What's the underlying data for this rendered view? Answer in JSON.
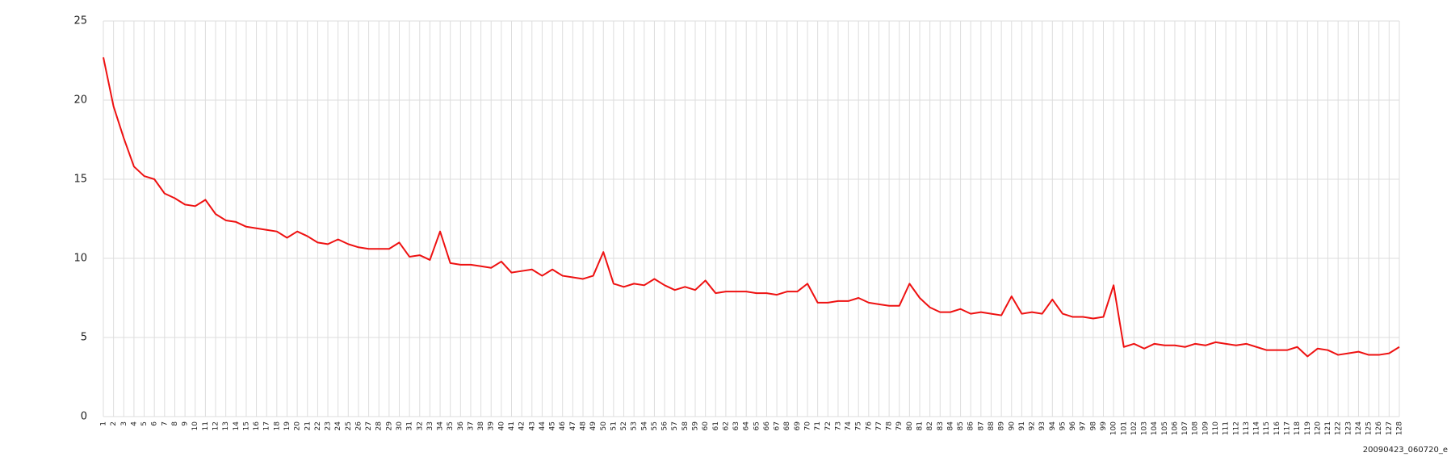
{
  "chart_data": {
    "type": "line",
    "x": [
      1,
      2,
      3,
      4,
      5,
      6,
      7,
      8,
      9,
      10,
      11,
      12,
      13,
      14,
      15,
      16,
      17,
      18,
      19,
      20,
      21,
      22,
      23,
      24,
      25,
      26,
      27,
      28,
      29,
      30,
      31,
      32,
      33,
      34,
      35,
      36,
      37,
      38,
      39,
      40,
      41,
      42,
      43,
      44,
      45,
      46,
      47,
      48,
      49,
      50,
      51,
      52,
      53,
      54,
      55,
      56,
      57,
      58,
      59,
      60,
      61,
      62,
      63,
      64,
      65,
      66,
      67,
      68,
      69,
      70,
      71,
      72,
      73,
      74,
      75,
      76,
      77,
      78,
      79,
      80,
      81,
      82,
      83,
      84,
      85,
      86,
      87,
      88,
      89,
      90,
      91,
      92,
      93,
      94,
      95,
      96,
      97,
      98,
      99,
      100,
      101,
      102,
      103,
      104,
      105,
      106,
      107,
      108,
      109,
      110,
      111,
      112,
      113,
      114,
      115,
      116,
      117,
      118,
      119,
      120,
      121,
      122,
      123,
      124,
      125,
      126,
      127,
      128
    ],
    "series": [
      {
        "color": "#ee1111",
        "values": [
          22.7,
          19.6,
          17.6,
          15.8,
          15.2,
          15.0,
          14.1,
          13.8,
          13.4,
          13.3,
          13.7,
          12.8,
          12.4,
          12.3,
          12.0,
          11.9,
          11.8,
          11.7,
          11.3,
          11.7,
          11.4,
          11.0,
          10.9,
          11.2,
          10.9,
          10.7,
          10.6,
          10.6,
          10.6,
          11.0,
          10.1,
          10.2,
          9.9,
          11.7,
          9.7,
          9.6,
          9.6,
          9.5,
          9.4,
          9.8,
          9.1,
          9.2,
          9.3,
          8.9,
          9.3,
          8.9,
          8.8,
          8.7,
          8.9,
          10.4,
          8.4,
          8.2,
          8.4,
          8.3,
          8.7,
          8.3,
          8.0,
          8.2,
          8.0,
          8.6,
          7.8,
          7.9,
          7.9,
          7.9,
          7.8,
          7.8,
          7.7,
          7.9,
          7.9,
          8.4,
          7.2,
          7.2,
          7.3,
          7.3,
          7.5,
          7.2,
          7.1,
          7.0,
          7.0,
          8.4,
          7.5,
          6.9,
          6.6,
          6.6,
          6.8,
          6.5,
          6.6,
          6.5,
          6.4,
          7.6,
          6.5,
          6.6,
          6.5,
          7.4,
          6.5,
          6.3,
          6.3,
          6.2,
          6.3,
          8.3,
          4.4,
          4.6,
          4.3,
          4.6,
          4.5,
          4.5,
          4.4,
          4.6,
          4.5,
          4.7,
          4.6,
          4.5,
          4.6,
          4.4,
          4.2,
          4.2,
          4.2,
          4.4,
          3.8,
          4.3,
          4.2,
          3.9,
          4.0,
          4.1,
          3.9,
          3.9,
          4.0,
          4.4
        ]
      }
    ],
    "xlim": [
      1,
      128
    ],
    "ylim": [
      0,
      25
    ],
    "yticks": [
      0,
      5,
      10,
      15,
      20,
      25
    ],
    "grid": true,
    "annotation": "20090423_060720_e"
  }
}
